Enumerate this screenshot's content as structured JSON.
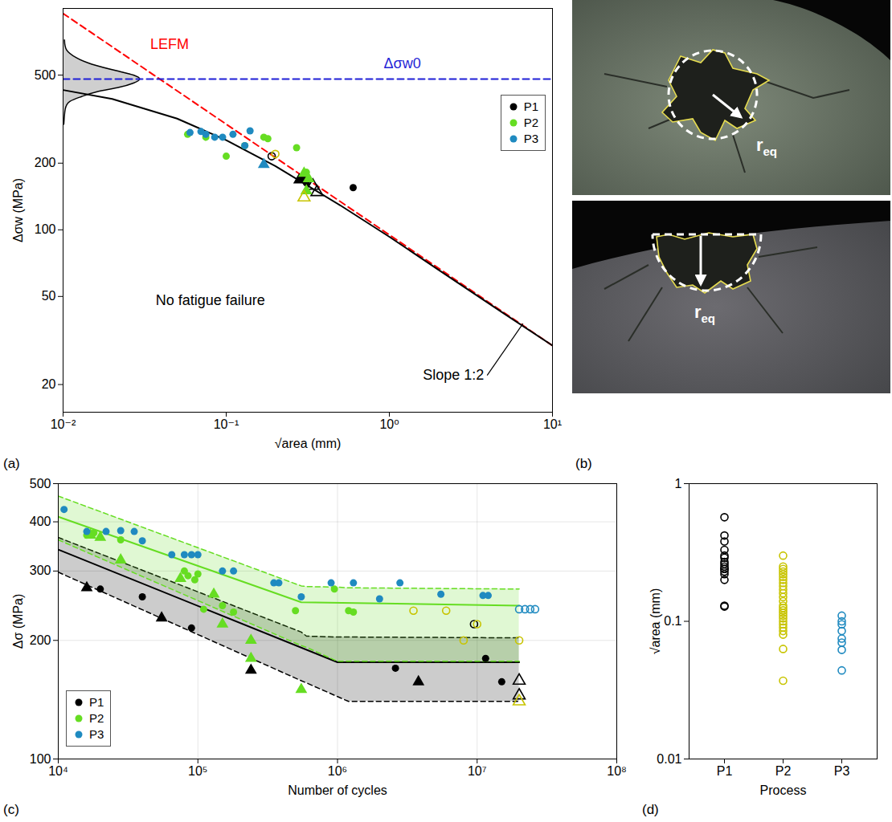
{
  "chart_data": [
    {
      "type": "scatter",
      "panel": "(a)",
      "x_label": "√area (mm)",
      "y_label": "Δσw (MPa)",
      "log": true,
      "grid": false,
      "legend": "right",
      "xlim": [
        0.01,
        10
      ],
      "xticks": [
        {
          "value": 0.01,
          "label": "10⁻²"
        },
        {
          "value": 0.1,
          "label": "10⁻¹"
        },
        {
          "value": 1,
          "label": "10⁰"
        },
        {
          "value": 10,
          "label": "10¹"
        }
      ],
      "ylim": [
        15,
        1000
      ],
      "yticks": [
        20,
        50,
        100,
        200,
        500
      ],
      "lines": [
        {
          "color": "#ff0000",
          "line_style": "dashed",
          "x": [
            0.01,
            10
          ],
          "y": [
            949,
            30
          ]
        },
        {
          "color": "#1f1fd6",
          "line_style": "dashed",
          "x": [
            0.01,
            10
          ],
          "y": [
            480,
            480
          ]
        },
        {
          "color": "#000000",
          "line_style": "solid",
          "x": [
            0.01,
            0.02,
            0.05,
            0.1,
            0.2,
            0.5,
            1,
            2,
            5,
            10
          ],
          "y": [
            428,
            390,
            318,
            254,
            194,
            129,
            93,
            66,
            42,
            30
          ]
        }
      ],
      "distribution": {
        "y": [
          300,
          350,
          380,
          400,
          420,
          440,
          460,
          480,
          500,
          520,
          560,
          600,
          650,
          720
        ],
        "x": [
          0.0101,
          0.0103,
          0.011,
          0.013,
          0.016,
          0.022,
          0.027,
          0.0295,
          0.027,
          0.022,
          0.015,
          0.012,
          0.0105,
          0.0102
        ]
      },
      "series": [
        {
          "name": "P1",
          "color": "#000000",
          "groups": [
            {
              "marker": "circle",
              "x": [
                0.31,
                0.6
              ],
              "y": [
                163,
                155
              ]
            },
            {
              "marker": "triangle",
              "x": [
                0.28,
                0.3
              ],
              "y": [
                168,
                170
              ]
            },
            {
              "marker": "triangle-open",
              "x": [
                0.34,
                0.36
              ],
              "y": [
                158,
                148
              ]
            },
            {
              "marker": "circle-open",
              "x": [
                0.19
              ],
              "y": [
                215
              ]
            }
          ]
        },
        {
          "name": "P2",
          "color": "#66dd22",
          "groups": [
            {
              "marker": "circle",
              "x": [
                0.058,
                0.075,
                0.1,
                0.13,
                0.17,
                0.18,
                0.27,
                0.31
              ],
              "y": [
                270,
                262,
                215,
                240,
                262,
                258,
                235,
                182
              ]
            },
            {
              "marker": "triangle",
              "x": [
                0.3,
                0.32,
                0.31
              ],
              "y": [
                180,
                170,
                150
              ]
            },
            {
              "marker": "triangle-open",
              "color": "#c8c400",
              "x": [
                0.3
              ],
              "y": [
                140
              ]
            },
            {
              "marker": "circle-open",
              "color": "#c8c400",
              "x": [
                0.2
              ],
              "y": [
                220
              ]
            }
          ]
        },
        {
          "name": "P3",
          "color": "#1f8ac0",
          "groups": [
            {
              "marker": "circle",
              "x": [
                0.06,
                0.07,
                0.075,
                0.085,
                0.095,
                0.11,
                0.13,
                0.14
              ],
              "y": [
                275,
                278,
                270,
                262,
                262,
                270,
                240,
                280
              ]
            },
            {
              "marker": "triangle",
              "x": [
                0.17
              ],
              "y": [
                197
              ]
            }
          ]
        }
      ],
      "annotations": [
        {
          "text": "LEFM",
          "color": "#ff0000",
          "x": 0.045,
          "y": 690
        },
        {
          "text": "Δσw0",
          "color": "#1f1fd6",
          "x": 1.2,
          "y": 565
        },
        {
          "text": "No fatigue failure",
          "color": "#000000",
          "x": 0.08,
          "y": 48
        },
        {
          "text": "Slope 1:2",
          "color": "#000000",
          "x": 3.8,
          "y": 22,
          "points_to": [
            6.3,
            37.7
          ]
        }
      ]
    },
    {
      "type": "photo",
      "panel": "(b)",
      "images": [
        {
          "label": {
            "text": "r",
            "subscript": "eq"
          }
        },
        {
          "label": {
            "text": "r",
            "subscript": "eq"
          }
        }
      ]
    },
    {
      "type": "scatter",
      "panel": "(c)",
      "x_label": "Number of cycles",
      "y_label": "Δσ (MPa)",
      "log": true,
      "grid": true,
      "legend": "bottom-left",
      "xlim": [
        10000,
        100000000
      ],
      "xticks": [
        {
          "value": 10000,
          "label": "10⁴"
        },
        {
          "value": 100000,
          "label": "10⁵"
        },
        {
          "value": 1000000,
          "label": "10⁶"
        },
        {
          "value": 10000000,
          "label": "10⁷"
        },
        {
          "value": 100000000,
          "label": "10⁸"
        }
      ],
      "ylim": [
        100,
        500
      ],
      "yticks": [
        100,
        200,
        300,
        400,
        500
      ],
      "series": [
        {
          "name": "P1",
          "color": "#000000",
          "band": {
            "x": [
              10000,
              550000,
              600000,
              1000000,
              1200000,
              20000000
            ],
            "lower": [
              298,
              158,
              156,
              144,
              140,
              140
            ],
            "upper": [
              365,
              210,
              205,
              204,
              204,
              203
            ]
          },
          "mean": {
            "x": [
              10000,
              1000000,
              20000000
            ],
            "y": [
              340,
              176,
              176
            ]
          },
          "groups": [
            {
              "marker": "circle",
              "x": [
                20000,
                40000,
                90000,
                2600000,
                11500000,
                15000000
              ],
              "y": [
                270,
                258,
                215,
                170,
                180,
                157
              ]
            },
            {
              "marker": "triangle",
              "x": [
                16000,
                55000,
                240000,
                3800000
              ],
              "y": [
                272,
                228,
                168,
                157
              ]
            },
            {
              "marker": "triangle-open",
              "x": [
                20000000,
                20000000
              ],
              "y": [
                158,
                145
              ]
            },
            {
              "marker": "circle-open",
              "x": [
                9500000
              ],
              "y": [
                220
              ]
            }
          ]
        },
        {
          "name": "P2",
          "color": "#66dd22",
          "band": {
            "x": [
              10000,
              550000,
              600000,
              1000000,
              1200000,
              20000000
            ],
            "lower": [
              360,
              194,
              192,
              177,
              177,
              177
            ],
            "upper": [
              465,
              275,
              274,
              273,
              272,
              270
            ]
          },
          "mean": {
            "x": [
              10000,
              550000,
              20000000
            ],
            "y": [
              412,
              250,
              245
            ]
          },
          "groups": [
            {
              "marker": "circle",
              "x": [
                16000,
                18000,
                28000,
                80000,
                85000,
                95000,
                100000,
                110000,
                150000,
                180000,
                500000,
                950000,
                1200000,
                1300000
              ],
              "y": [
                370,
                375,
                360,
                300,
                292,
                285,
                295,
                240,
                245,
                236,
                238,
                270,
                238,
                236
              ]
            },
            {
              "marker": "triangle",
              "x": [
                17000,
                20000,
                28000,
                75000,
                130000,
                150000,
                240000,
                240000,
                550000
              ],
              "y": [
                370,
                365,
                320,
                287,
                262,
                220,
                200,
                180,
                150
              ]
            },
            {
              "marker": "circle-open",
              "color": "#c8c400",
              "x": [
                3500000,
                6000000,
                8000000,
                10000000,
                20000000
              ],
              "y": [
                238,
                238,
                200,
                220,
                200
              ]
            },
            {
              "marker": "triangle-open",
              "color": "#c8c400",
              "x": [
                20000000
              ],
              "y": [
                140
              ]
            }
          ]
        },
        {
          "name": "P3",
          "color": "#1f8ac0",
          "groups": [
            {
              "marker": "circle",
              "x": [
                11000,
                16000,
                22000,
                28000,
                35000,
                40000,
                65000,
                80000,
                90000,
                100000,
                150000,
                180000,
                350000,
                380000,
                550000,
                900000,
                1300000,
                2000000,
                2800000,
                5500000,
                11000000,
                12000000
              ],
              "y": [
                430,
                378,
                378,
                380,
                378,
                358,
                330,
                330,
                330,
                330,
                300,
                300,
                280,
                280,
                258,
                280,
                280,
                255,
                280,
                262,
                260,
                260
              ]
            },
            {
              "marker": "circle-open",
              "x": [
                20000000,
                22000000,
                24000000,
                26000000
              ],
              "y": [
                240,
                240,
                240,
                240
              ]
            }
          ]
        }
      ]
    },
    {
      "type": "scatter",
      "panel": "(d)",
      "x_label": "Process",
      "y_label": "√area (mm)",
      "log": "y",
      "marker": "circle-open",
      "categories": [
        "P1",
        "P2",
        "P3"
      ],
      "colors": [
        "#000000",
        "#c8c400",
        "#1f8ac0"
      ],
      "ylim": [
        0.01,
        1
      ],
      "yticks": [
        0.01,
        0.1,
        1
      ],
      "values": [
        [
          0.57,
          0.42,
          0.38,
          0.33,
          0.3,
          0.29,
          0.27,
          0.26,
          0.25,
          0.24,
          0.24,
          0.23,
          0.22,
          0.2,
          0.13,
          0.128
        ],
        [
          0.3,
          0.25,
          0.24,
          0.23,
          0.22,
          0.21,
          0.2,
          0.19,
          0.18,
          0.17,
          0.16,
          0.15,
          0.14,
          0.13,
          0.125,
          0.12,
          0.115,
          0.11,
          0.105,
          0.1,
          0.095,
          0.09,
          0.085,
          0.08,
          0.063,
          0.037
        ],
        [
          0.11,
          0.1,
          0.095,
          0.085,
          0.075,
          0.07,
          0.062,
          0.044
        ]
      ]
    }
  ]
}
